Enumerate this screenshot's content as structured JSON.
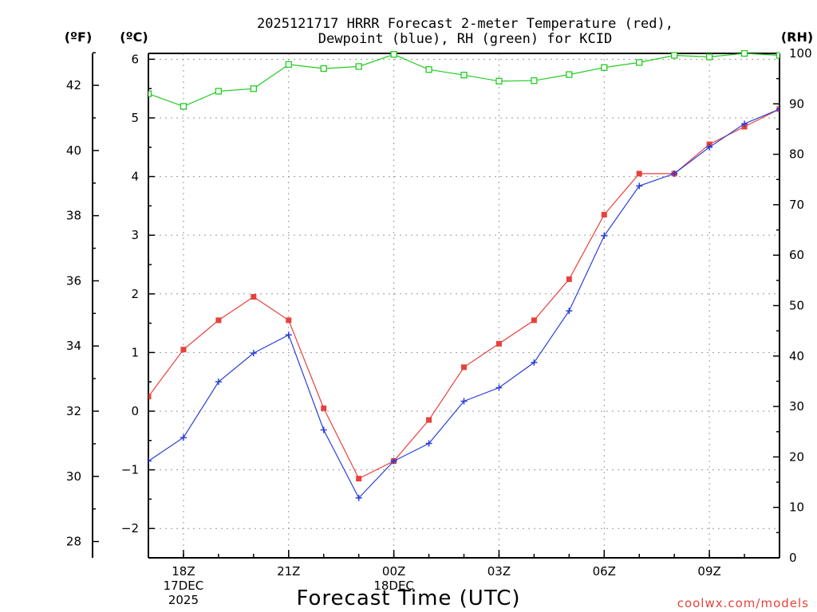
{
  "header": {
    "title_line1": "2025121717 HRRR Forecast 2-meter Temperature (red),",
    "title_line2": "Dewpoint (blue), RH (green) for KCID",
    "unit_f": "(ºF)",
    "unit_c": "(ºC)",
    "unit_rh": "(RH)"
  },
  "footer": {
    "xlabel": "Forecast Time (UTC)",
    "credit": "coolwx.com/models"
  },
  "chart_data": {
    "type": "line",
    "title": "2025121717 HRRR Forecast 2-meter Temperature (red), Dewpoint (blue), RH (green) for KCID",
    "xlabel": "Forecast Time (UTC)",
    "ylabel_left_outer": "(ºF)",
    "ylabel_left_inner": "(ºC)",
    "ylabel_right": "(RH)",
    "x_hours": [
      0,
      1,
      2,
      3,
      4,
      5,
      6,
      7,
      8,
      9,
      10,
      11,
      12,
      13,
      14,
      15,
      16,
      17,
      18
    ],
    "x_range": [
      0,
      18
    ],
    "x_ticks": [
      {
        "hour": 1,
        "lines": [
          "18Z",
          "17DEC",
          "2025"
        ]
      },
      {
        "hour": 4,
        "lines": [
          "21Z"
        ]
      },
      {
        "hour": 7,
        "lines": [
          "00Z",
          "18DEC"
        ]
      },
      {
        "hour": 10,
        "lines": [
          "03Z"
        ]
      },
      {
        "hour": 13,
        "lines": [
          "06Z"
        ]
      },
      {
        "hour": 16,
        "lines": [
          "09Z"
        ]
      }
    ],
    "y_celsius_range": [
      -2.5,
      6.1
    ],
    "y_celsius_ticks": [
      -2,
      -1,
      0,
      1,
      2,
      3,
      4,
      5,
      6
    ],
    "y_fahrenheit_ticks": [
      28,
      30,
      32,
      34,
      36,
      38,
      40,
      42
    ],
    "y_rh_range": [
      0,
      100
    ],
    "y_rh_ticks": [
      0,
      10,
      20,
      30,
      40,
      50,
      60,
      70,
      80,
      90,
      100
    ],
    "grid": true,
    "colors": {
      "temperature": "#e8413b",
      "dewpoint": "#2a3fd8",
      "rh": "#22cc22"
    },
    "series": [
      {
        "name": "Temperature",
        "axis": "celsius",
        "color": "#e8413b",
        "marker": "filled-square",
        "values": [
          0.25,
          1.05,
          1.55,
          1.95,
          1.55,
          0.05,
          -1.15,
          -0.85,
          -0.15,
          0.75,
          1.15,
          1.55,
          2.25,
          3.35,
          4.05,
          4.05,
          4.55,
          4.85,
          5.15
        ]
      },
      {
        "name": "Dewpoint",
        "axis": "celsius",
        "color": "#2a3fd8",
        "marker": "plus",
        "values": [
          -0.85,
          -0.45,
          0.5,
          0.99,
          1.3,
          -0.32,
          -1.48,
          -0.85,
          -0.55,
          0.17,
          0.4,
          0.83,
          1.71,
          2.99,
          3.84,
          4.05,
          4.5,
          4.9,
          5.15
        ]
      },
      {
        "name": "RH",
        "axis": "rh",
        "color": "#22cc22",
        "marker": "open-square",
        "values": [
          92,
          89.5,
          92.5,
          93,
          97.8,
          97,
          97.4,
          99.8,
          96.8,
          95.7,
          94.5,
          94.6,
          95.8,
          97.2,
          98.2,
          99.6,
          99.3,
          100,
          99.6
        ]
      }
    ]
  }
}
